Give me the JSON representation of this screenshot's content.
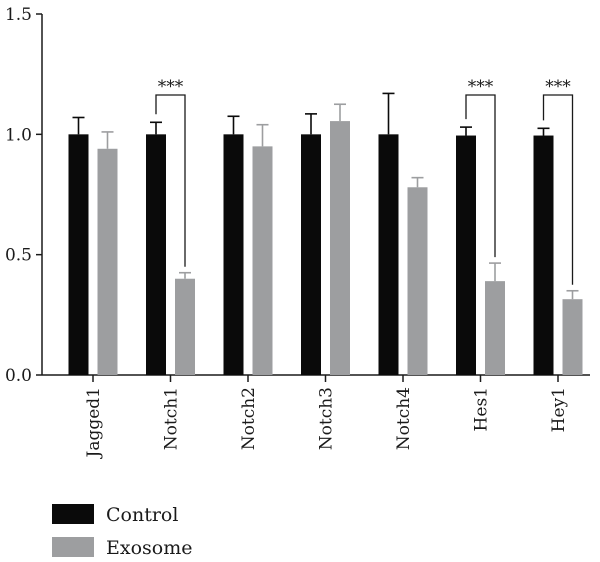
{
  "chart_data": {
    "type": "bar",
    "categories": [
      "Jagged1",
      "Notch1",
      "Notch2",
      "Notch3",
      "Notch4",
      "Hes1",
      "Hey1"
    ],
    "series": [
      {
        "name": "Control",
        "color": "#0a0a0a",
        "values": [
          1.0,
          1.0,
          1.0,
          1.0,
          1.0,
          0.995,
          0.995
        ],
        "errors": [
          0.07,
          0.05,
          0.075,
          0.085,
          0.17,
          0.035,
          0.03
        ]
      },
      {
        "name": "Exosome",
        "color": "#9d9ea0",
        "values": [
          0.94,
          0.4,
          0.95,
          1.055,
          0.78,
          0.39,
          0.315
        ],
        "errors": [
          0.07,
          0.025,
          0.09,
          0.07,
          0.04,
          0.075,
          0.035
        ]
      }
    ],
    "significance": [
      {
        "category": "Notch1",
        "label": "***"
      },
      {
        "category": "Hes1",
        "label": "***"
      },
      {
        "category": "Hey1",
        "label": "***"
      }
    ],
    "ylim": [
      0,
      1.5
    ],
    "yticks": [
      0.0,
      0.5,
      1.0,
      1.5
    ],
    "ytick_labels": [
      "0.0",
      "0.5",
      "1.0",
      "1.5"
    ],
    "grid": false,
    "legend_position": "bottom-left"
  }
}
